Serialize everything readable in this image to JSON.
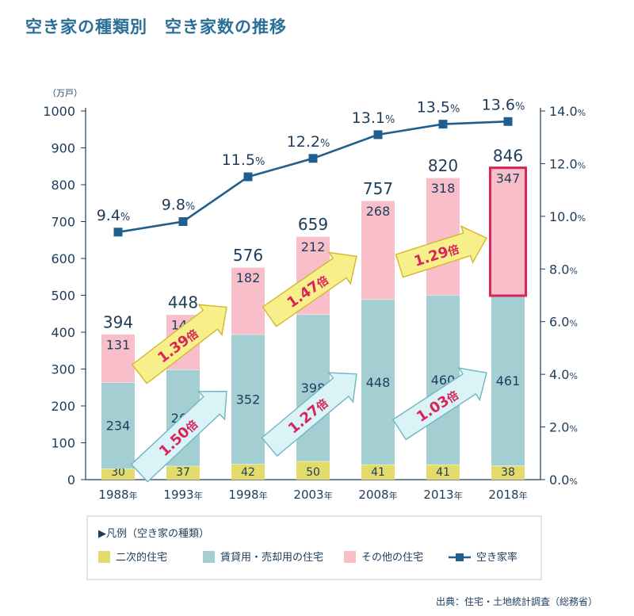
{
  "title": "空き家の種類別　空き家数の推移",
  "source": "出典：住宅・土地統計調査（総務省）",
  "chart_data": {
    "type": "bar",
    "stacked": true,
    "categories": [
      "1988年",
      "1993年",
      "1998年",
      "2003年",
      "2008年",
      "2013年",
      "2018年"
    ],
    "series": [
      {
        "name": "二次的住宅",
        "values": [
          30,
          37,
          42,
          50,
          41,
          41,
          38
        ],
        "color": "#e3dc6c"
      },
      {
        "name": "賃貸用・売却用の住宅",
        "values": [
          234,
          262,
          352,
          398,
          448,
          460,
          461
        ],
        "color": "#a3ced2"
      },
      {
        "name": "その他の住宅",
        "values": [
          131,
          149,
          182,
          212,
          268,
          318,
          347
        ],
        "color": "#f8bfcb"
      }
    ],
    "totals": [
      "394",
      "448",
      "576",
      "659",
      "757",
      "820",
      "846"
    ],
    "line": {
      "name": "空き家率",
      "values": [
        9.4,
        9.8,
        11.5,
        12.2,
        13.1,
        13.5,
        13.6
      ],
      "labels": [
        "9.4",
        "9.8",
        "11.5",
        "12.2",
        "13.1",
        "13.5",
        "13.6"
      ],
      "unit": "%",
      "color": "#1e5f8f"
    },
    "y_left": {
      "unit": "（万戸）",
      "ylim": [
        0,
        1000
      ],
      "ticks": [
        "0",
        "100",
        "200",
        "300",
        "400",
        "500",
        "600",
        "700",
        "800",
        "900",
        "1000"
      ]
    },
    "y_right": {
      "ylim": [
        0,
        14
      ],
      "ticks": [
        "0.0%",
        "2.0%",
        "4.0%",
        "6.0%",
        "8.0%",
        "10.0%",
        "12.0%",
        "14.0%"
      ]
    },
    "growth_arrows": [
      {
        "label": "1.50倍",
        "type": "rental",
        "from": "1988年",
        "to": "1998年"
      },
      {
        "label": "1.27倍",
        "type": "rental",
        "from": "1998年",
        "to": "2008年"
      },
      {
        "label": "1.03倍",
        "type": "rental",
        "from": "2008年",
        "to": "2018年"
      },
      {
        "label": "1.39倍",
        "type": "other",
        "from": "1988年",
        "to": "1998年"
      },
      {
        "label": "1.47倍",
        "type": "other",
        "from": "1998年",
        "to": "2008年"
      },
      {
        "label": "1.29倍",
        "type": "other",
        "from": "2008年",
        "to": "2018年"
      }
    ],
    "legend": {
      "title": "▶凡例（空き家の種類）",
      "placement": "bottom",
      "items": [
        "二次的住宅",
        "賃貸用・売却用の住宅",
        "その他の住宅",
        "空き家率"
      ]
    },
    "grid": false
  },
  "colors": {
    "title": "#2a6f98",
    "axis": "#1d3c5c",
    "highlight": "#d8245a",
    "arrow_rental_fill": "#d9f3f6",
    "arrow_rental_stroke": "#6fb6c0",
    "arrow_other_fill": "#f7ef8a",
    "arrow_other_stroke": "#d2b630",
    "arrow_text": "#d8245a"
  }
}
